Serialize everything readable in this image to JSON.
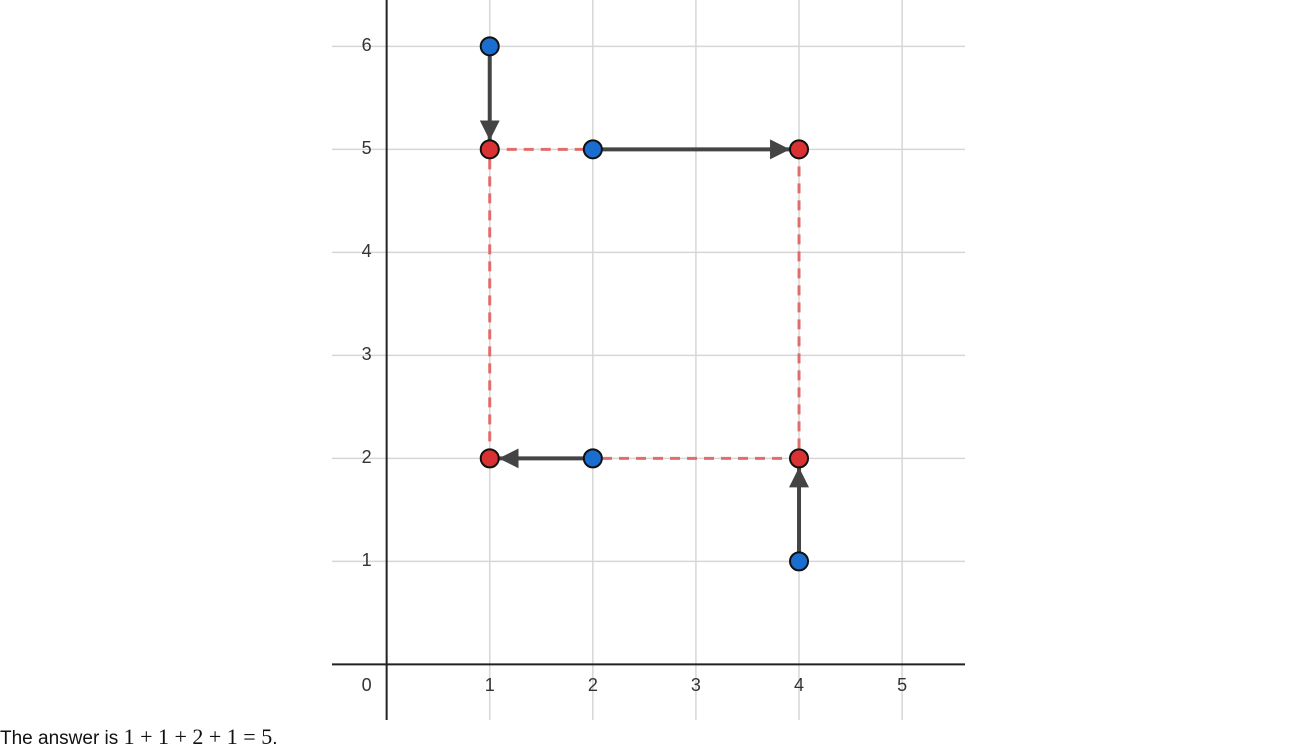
{
  "chart_data": {
    "type": "scatter",
    "xlim": [
      -0.53,
      5.61
    ],
    "ylim": [
      -0.54,
      6.45
    ],
    "xticks": [
      0,
      1,
      2,
      3,
      4,
      5
    ],
    "yticks": [
      1,
      2,
      3,
      4,
      5,
      6
    ],
    "grid": true,
    "series": [
      {
        "color": "#1a6ecf",
        "x": [
          1,
          2,
          2,
          4
        ],
        "y": [
          6,
          5,
          2,
          1
        ]
      },
      {
        "color": "#d93232",
        "x": [
          1,
          4,
          1,
          4
        ],
        "y": [
          5,
          5,
          2,
          2
        ]
      }
    ]
  },
  "caption": {
    "text": "The answer is",
    "math": "1 + 1 + 2 + 1 = 5",
    "end": "."
  }
}
